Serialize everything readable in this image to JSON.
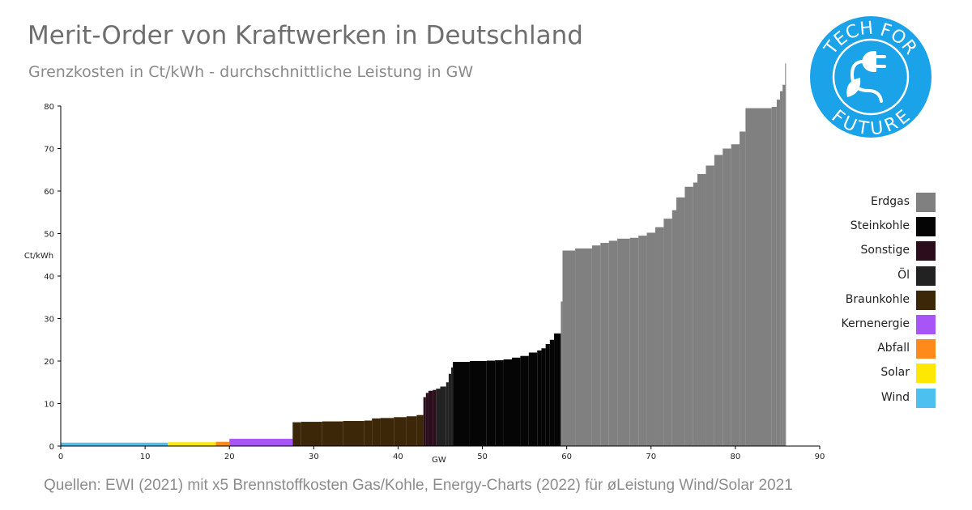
{
  "header": {
    "title": "Merit-Order von Kraftwerken in Deutschland",
    "subtitle": "Grenzkosten in Ct/kWh - durchschnittliche Leistung in GW"
  },
  "footer": {
    "source": "Quellen: EWI (2021) mit x5 Brennstoffkosten Gas/Kohle, Energy-Charts (2022) für øLeistung Wind/Solar 2021"
  },
  "logo": {
    "text_top": "TECH FOR",
    "text_bottom": "FUTURE",
    "color": "#1aa3e8",
    "icon": "plug-leaf-icon"
  },
  "chart_data": {
    "type": "bar",
    "subtype": "merit-order step chart (variable-width bars)",
    "xlabel": "GW",
    "ylabel": "Ct/kWh",
    "xlim": [
      0,
      90
    ],
    "ylim": [
      0,
      80
    ],
    "xticks": [
      0,
      10,
      20,
      30,
      40,
      50,
      60,
      70,
      80,
      90
    ],
    "yticks": [
      0,
      10,
      20,
      30,
      40,
      50,
      60,
      70,
      80
    ],
    "grid": false,
    "legend_position": "right",
    "legend": [
      {
        "name": "Erdgas",
        "color": "#808080"
      },
      {
        "name": "Steinkohle",
        "color": "#050505"
      },
      {
        "name": "Sonstige",
        "color": "#2b0d1c"
      },
      {
        "name": "Öl",
        "color": "#222222"
      },
      {
        "name": "Braunkohle",
        "color": "#3d2709"
      },
      {
        "name": "Kernenergie",
        "color": "#a855f7"
      },
      {
        "name": "Abfall",
        "color": "#ff8a1c"
      },
      {
        "name": "Solar",
        "color": "#ffe800"
      },
      {
        "name": "Wind",
        "color": "#4cc0ee"
      }
    ],
    "series": [
      {
        "name": "Wind",
        "color": "#4cc0ee",
        "segments": [
          [
            0.0,
            12.7,
            0.8
          ]
        ]
      },
      {
        "name": "Solar",
        "color": "#ffe800",
        "segments": [
          [
            12.7,
            18.4,
            0.9
          ]
        ]
      },
      {
        "name": "Abfall",
        "color": "#ff8a1c",
        "segments": [
          [
            18.4,
            20.0,
            1.0
          ]
        ]
      },
      {
        "name": "Kernenergie",
        "color": "#a855f7",
        "segments": [
          [
            20.0,
            27.5,
            1.7
          ]
        ]
      },
      {
        "name": "Braunkohle",
        "color": "#3d2709",
        "segments": [
          [
            27.5,
            28.5,
            5.6
          ],
          [
            28.5,
            31.0,
            5.7
          ],
          [
            31.0,
            33.5,
            5.8
          ],
          [
            33.5,
            36.0,
            5.9
          ],
          [
            36.0,
            36.9,
            6.0
          ],
          [
            36.9,
            37.9,
            6.5
          ],
          [
            37.9,
            39.5,
            6.6
          ],
          [
            39.5,
            41.0,
            6.8
          ],
          [
            41.0,
            42.2,
            7.0
          ],
          [
            42.2,
            43.0,
            7.3
          ]
        ]
      },
      {
        "name": "Sonstige",
        "color": "#2b0d1c",
        "segments": [
          [
            43.0,
            43.3,
            11.5
          ],
          [
            43.3,
            43.6,
            12.5
          ],
          [
            43.6,
            44.1,
            13.0
          ],
          [
            44.1,
            44.5,
            13.2
          ]
        ]
      },
      {
        "name": "Öl",
        "color": "#222222",
        "segments": [
          [
            44.5,
            45.0,
            13.5
          ],
          [
            45.0,
            45.7,
            14.0
          ],
          [
            45.7,
            46.0,
            15.0
          ],
          [
            46.0,
            46.3,
            17.0
          ],
          [
            46.3,
            46.5,
            18.5
          ]
        ]
      },
      {
        "name": "Steinkohle",
        "color": "#050505",
        "segments": [
          [
            46.5,
            48.5,
            19.8
          ],
          [
            48.5,
            50.5,
            20.0
          ],
          [
            50.5,
            51.5,
            20.1
          ],
          [
            51.5,
            52.5,
            20.2
          ],
          [
            52.5,
            53.5,
            20.4
          ],
          [
            53.5,
            54.5,
            20.8
          ],
          [
            54.5,
            55.5,
            21.2
          ],
          [
            55.5,
            56.5,
            22.0
          ],
          [
            56.5,
            57.0,
            22.5
          ],
          [
            57.0,
            57.5,
            23.0
          ],
          [
            57.5,
            58.0,
            24.0
          ],
          [
            58.0,
            58.5,
            25.0
          ],
          [
            58.5,
            59.3,
            26.5
          ]
        ]
      },
      {
        "name": "Erdgas",
        "color": "#808080",
        "segments": [
          [
            59.3,
            59.5,
            34.0
          ],
          [
            59.5,
            61.0,
            46.0
          ],
          [
            61.0,
            63.0,
            46.5
          ],
          [
            63.0,
            64.0,
            47.2
          ],
          [
            64.0,
            65.0,
            47.8
          ],
          [
            65.0,
            66.0,
            48.3
          ],
          [
            66.0,
            67.5,
            48.8
          ],
          [
            67.5,
            68.5,
            49.0
          ],
          [
            68.5,
            69.5,
            49.5
          ],
          [
            69.5,
            70.5,
            50.2
          ],
          [
            70.5,
            71.5,
            51.5
          ],
          [
            71.5,
            72.5,
            53.5
          ],
          [
            72.5,
            73.0,
            55.5
          ],
          [
            73.0,
            74.0,
            58.5
          ],
          [
            74.0,
            75.0,
            61.0
          ],
          [
            75.0,
            75.5,
            62.0
          ],
          [
            75.5,
            76.5,
            64.0
          ],
          [
            76.5,
            77.5,
            66.0
          ],
          [
            77.5,
            78.5,
            68.5
          ],
          [
            78.5,
            79.5,
            70.0
          ],
          [
            79.5,
            80.5,
            71.0
          ],
          [
            80.5,
            81.2,
            74.0
          ],
          [
            81.2,
            84.3,
            79.5
          ],
          [
            84.3,
            84.9,
            79.8
          ],
          [
            84.9,
            85.3,
            81.5
          ],
          [
            85.3,
            85.6,
            83.5
          ],
          [
            85.6,
            85.9,
            85.0
          ],
          [
            85.9,
            86.0,
            90.0
          ]
        ]
      }
    ]
  }
}
